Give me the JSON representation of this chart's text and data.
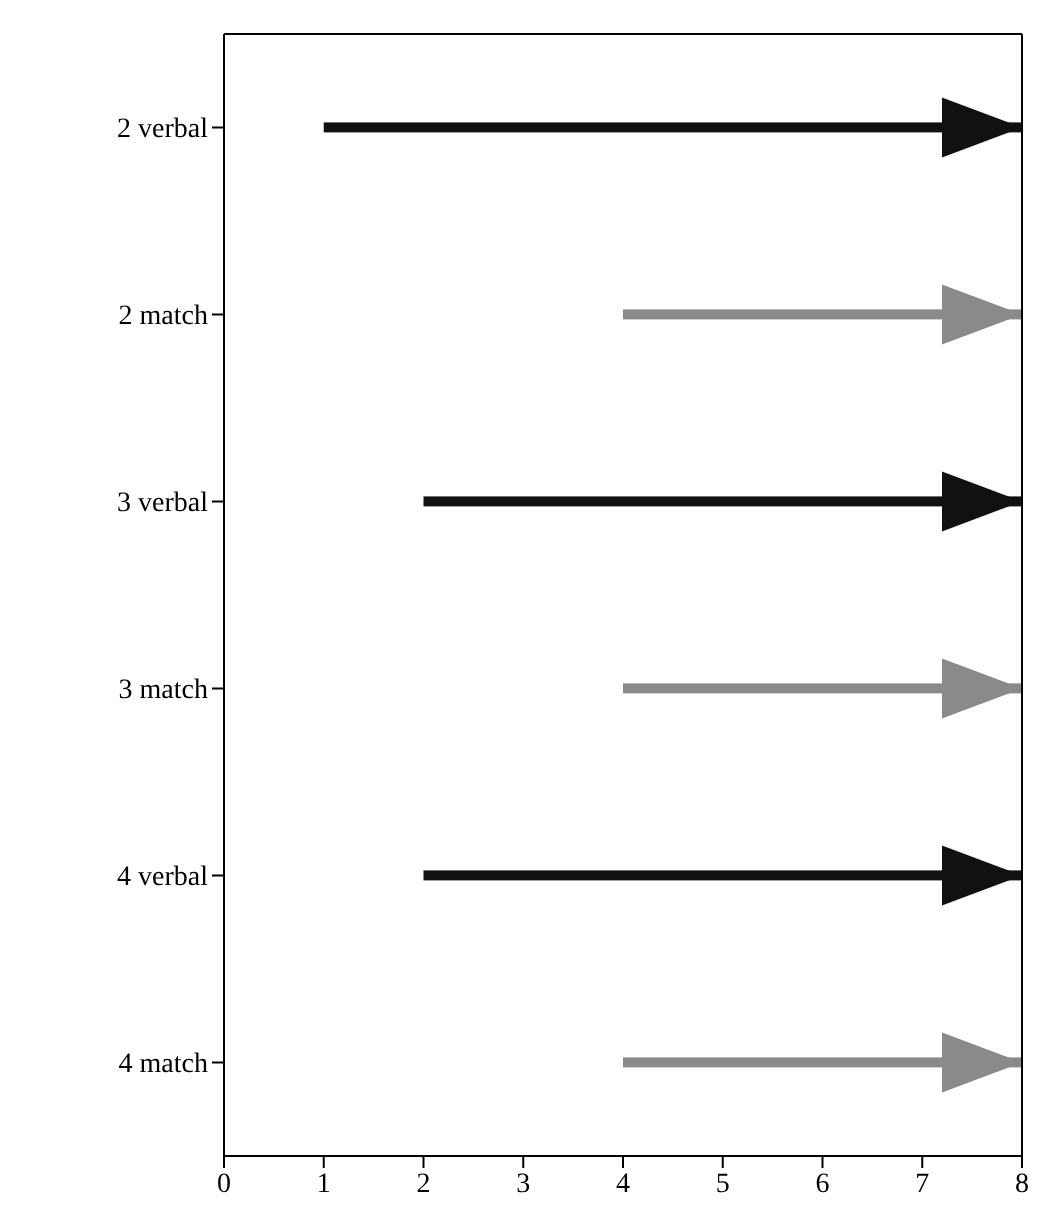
{
  "chart_data": {
    "type": "bar",
    "orientation": "horizontal",
    "categories": [
      "2 verbal",
      "2 match",
      "3 verbal",
      "3 match",
      "4 verbal",
      "4 match"
    ],
    "base": [
      1,
      4,
      2,
      4,
      2,
      4
    ],
    "values": [
      7,
      4,
      6,
      4,
      6,
      4
    ],
    "colors": [
      "#111111",
      "#8a8a8a",
      "#111111",
      "#8a8a8a",
      "#111111",
      "#8a8a8a"
    ],
    "xlim": [
      0,
      8
    ],
    "xticks": [
      0,
      1,
      2,
      3,
      4,
      5,
      6,
      7,
      8
    ],
    "grid": false,
    "legend": false
  }
}
